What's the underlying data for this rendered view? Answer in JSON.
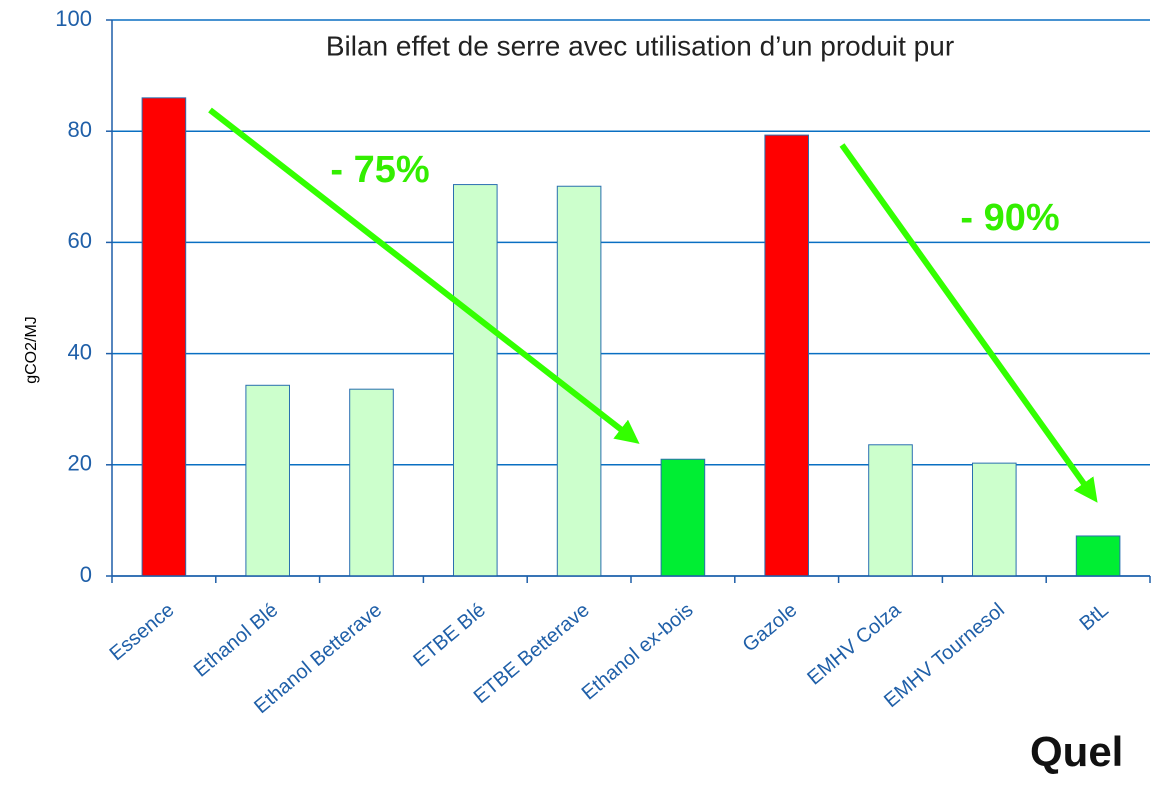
{
  "chart_data": {
    "type": "bar",
    "title": "Bilan effet de serre avec utilisation d’un produit pur",
    "y_label": "gCO2/MJ",
    "categories": [
      "Essence",
      "Ethanol Blé",
      "Ethanol Betterave",
      "ETBE Blé",
      "ETBE Betterave",
      "Ethanol ex-bois",
      "Gazole",
      "EMHV Colza",
      "EMHV Tournesol",
      "BtL"
    ],
    "values": [
      86,
      34.3,
      33.6,
      70.4,
      70.1,
      21,
      79.3,
      23.6,
      20.3,
      7.2
    ],
    "colors": [
      "#ff0000",
      "#ccffcc",
      "#ccffcc",
      "#ccffcc",
      "#ccffcc",
      "#00ee33",
      "#ff0000",
      "#ccffcc",
      "#ccffcc",
      "#00ee33"
    ],
    "ylim": [
      0,
      100
    ],
    "yticks": [
      0,
      20,
      40,
      60,
      80,
      100
    ],
    "grid": true,
    "annotations": [
      "- 75%",
      "- 90%"
    ]
  },
  "overlay_text": "Quel"
}
